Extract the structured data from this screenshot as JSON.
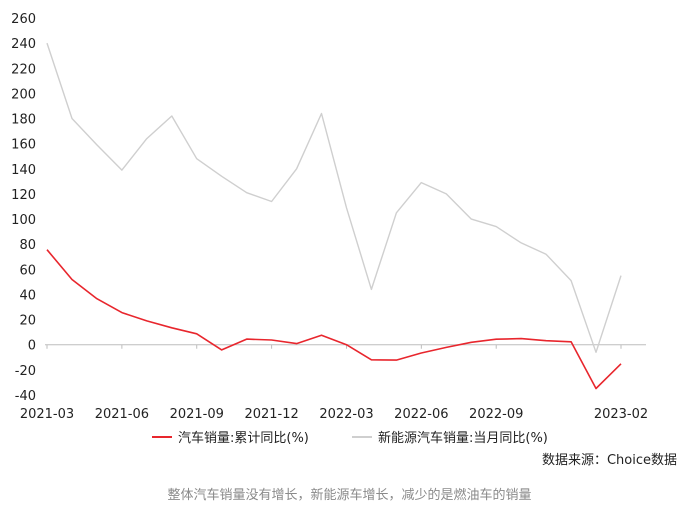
{
  "chart_data": {
    "type": "line",
    "x": [
      "2021-03",
      "2021-04",
      "2021-05",
      "2021-06",
      "2021-07",
      "2021-08",
      "2021-09",
      "2021-10",
      "2021-11",
      "2021-12",
      "2022-01",
      "2022-02",
      "2022-03",
      "2022-04",
      "2022-05",
      "2022-06",
      "2022-07",
      "2022-08",
      "2022-09",
      "2022-10",
      "2022-11",
      "2022-12",
      "2023-01",
      "2023-02"
    ],
    "x_tick_labels": [
      "2021-03",
      "2021-06",
      "2021-09",
      "2021-12",
      "2022-03",
      "2022-06",
      "2022-09",
      "2023-02"
    ],
    "x_tick_positions": [
      "2021-03",
      "2021-06",
      "2021-09",
      "2021-12",
      "2022-03",
      "2022-06",
      "2022-09",
      "2023-02"
    ],
    "series": [
      {
        "name": "汽车销量:累计同比(%)",
        "color": "#e8262d",
        "values": [
          75.6,
          51.9,
          36.6,
          25.6,
          19.0,
          13.5,
          8.7,
          -4.1,
          4.5,
          3.8,
          0.9,
          7.6,
          0,
          -12.0,
          -12.2,
          -6.6,
          -2.1,
          1.9,
          4.4,
          4.9,
          3.2,
          2.3,
          -34.8,
          -15.2
        ]
      },
      {
        "name": "新能源汽车销量:当月同比(%)",
        "color": "#cfcfcf",
        "values": [
          240,
          180,
          159,
          139,
          164,
          182,
          148,
          134,
          121,
          114,
          140,
          184,
          109,
          44,
          105,
          129,
          120,
          100,
          94,
          81,
          72,
          51,
          -6,
          55
        ]
      }
    ],
    "y_ticks": [
      260,
      240,
      220,
      200,
      180,
      160,
      140,
      120,
      100,
      80,
      60,
      40,
      20,
      0,
      -20,
      -40
    ],
    "ylim": [
      -40,
      260
    ],
    "grid": false,
    "legend": "bottom"
  },
  "source": "数据来源：Choice数据",
  "caption": "整体汽车销量没有增长，新能源车增长，减少的是燃油车的销量"
}
